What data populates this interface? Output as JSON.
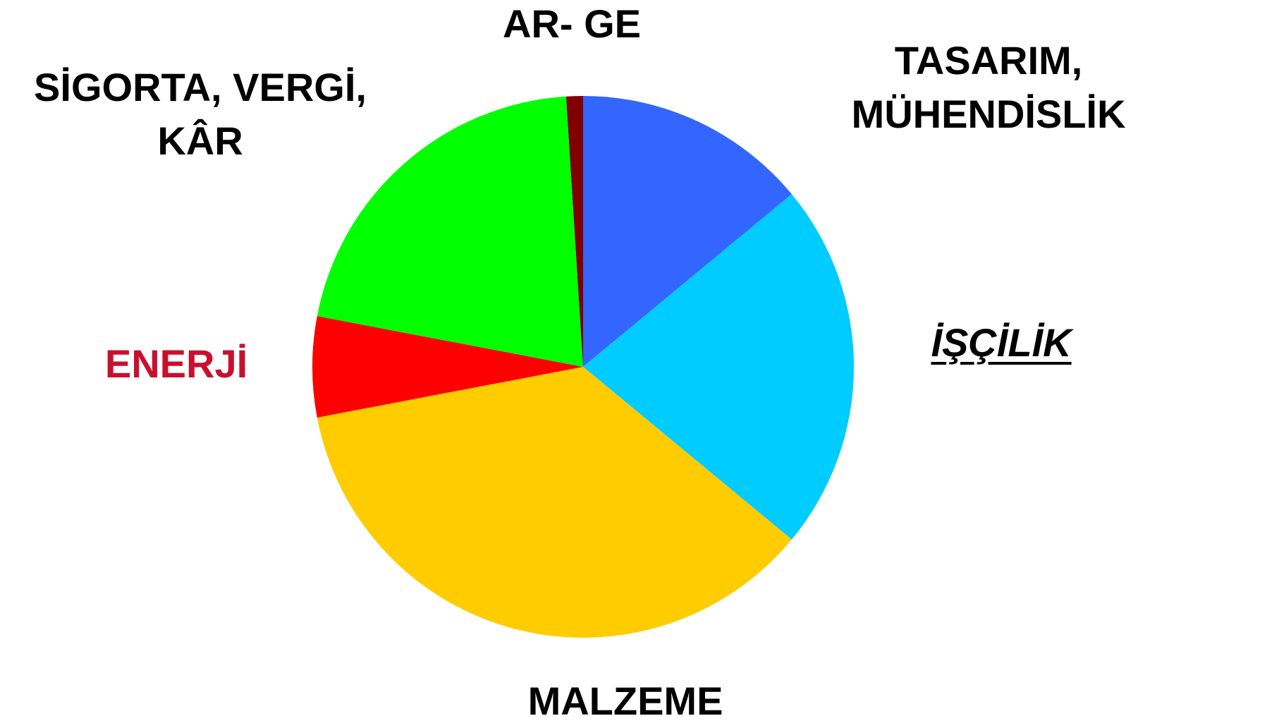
{
  "chart_data": {
    "type": "pie",
    "categories": [
      "TASARIM, MÜHENDİSLİK",
      "İŞÇİLİK",
      "MALZEME",
      "ENERJİ",
      "SİGORTA, VERGİ,\nKÂR",
      "AR- GE"
    ],
    "values": [
      14,
      22,
      36,
      6,
      21,
      1
    ],
    "colors": [
      "#3366ff",
      "#00ccff",
      "#ffcc00",
      "#ff0000",
      "#00ff00",
      "#800000"
    ]
  }
}
